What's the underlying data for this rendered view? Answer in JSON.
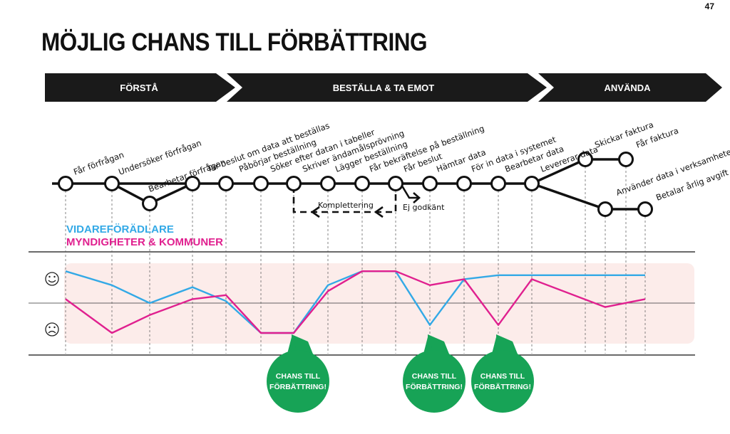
{
  "page_number": "47",
  "title": "MÖJLIG CHANS TILL FÖRBÄTTRING",
  "phases": [
    "FÖRSTÅ",
    "BESTÄLLA & TA EMOT",
    "ANVÄNDA"
  ],
  "steps": [
    "Får förfrågan",
    "Undersöker förfrågan",
    "Bearbetar förfrågan",
    "Tar beslut om data att beställas",
    "Påbörjar beställning",
    "Söker efter datan i tabeller",
    "Skriver ändamålsprövning",
    "Lägger beställning",
    "Får bekräftelse på beställning",
    "Får beslut",
    "Hämtar data",
    "För in data i systemet",
    "Bearbetar data",
    "Levererar data",
    "Skickar faktura",
    "Får faktura",
    "Använder data i verksamheten",
    "Betalar årlig avgift för Geodata"
  ],
  "flow_labels": {
    "kompletering": "Komplettering",
    "ej_godkant": "Ej godkänt"
  },
  "legend": {
    "series_1": "VIDAREFÖRÄDLARE",
    "series_2": "MYNDIGHETER & KOMMUNER"
  },
  "mood_icons": {
    "happy": "happy-face-icon",
    "sad": "sad-face-icon"
  },
  "chance_label_line1": "CHANS TILL",
  "chance_label_line2": "FÖRBÄTTRING!",
  "colors": {
    "series_1": "#33a9e6",
    "series_2": "#e0208f",
    "chance": "#17a356",
    "band": "#fcecea",
    "phase_bar": "#1a1a1a"
  },
  "chart_data": {
    "type": "line",
    "y_scale": "satisfaction from sad (-1) to happy (+1), no numeric labels",
    "series": [
      {
        "name": "VIDAREFÖRÄDLARE",
        "color": "#33a9e6",
        "points": [
          {
            "step": 1,
            "value": 0.8
          },
          {
            "step": 2,
            "value": 0.45
          },
          {
            "step": 3,
            "value": 0.0
          },
          {
            "step": 4,
            "value": 0.4
          },
          {
            "step": 5,
            "value": 0.05
          },
          {
            "step": 6,
            "value": -0.75
          },
          {
            "step": 7,
            "value": -0.75
          },
          {
            "step": 8,
            "value": 0.45
          },
          {
            "step": 9,
            "value": 0.8
          },
          {
            "step": 10,
            "value": 0.8
          },
          {
            "step": 11,
            "value": -0.55
          },
          {
            "step": 12,
            "value": 0.6
          },
          {
            "step": 13,
            "value": 0.7
          },
          {
            "step": 14,
            "value": 0.7
          },
          {
            "step": 15,
            "value": 0.7
          },
          {
            "step": 16,
            "value": 0.7
          },
          {
            "step": 17,
            "value": 0.7
          },
          {
            "step": 18,
            "value": 0.7
          }
        ]
      },
      {
        "name": "MYNDIGHETER & KOMMUNER",
        "color": "#e0208f",
        "points": [
          {
            "step": 1,
            "value": 0.1
          },
          {
            "step": 2,
            "value": -0.75
          },
          {
            "step": 3,
            "value": -0.3
          },
          {
            "step": 4,
            "value": 0.1
          },
          {
            "step": 5,
            "value": 0.2
          },
          {
            "step": 6,
            "value": -0.75
          },
          {
            "step": 7,
            "value": -0.75
          },
          {
            "step": 8,
            "value": 0.3
          },
          {
            "step": 9,
            "value": 0.8
          },
          {
            "step": 10,
            "value": 0.8
          },
          {
            "step": 11,
            "value": 0.45
          },
          {
            "step": 12,
            "value": 0.6
          },
          {
            "step": 13,
            "value": -0.55
          },
          {
            "step": 14,
            "value": 0.6
          },
          {
            "step": 17,
            "value": -0.1
          },
          {
            "step": 18,
            "value": 0.1
          }
        ]
      }
    ],
    "chance_steps": [
      7,
      11,
      13
    ]
  }
}
